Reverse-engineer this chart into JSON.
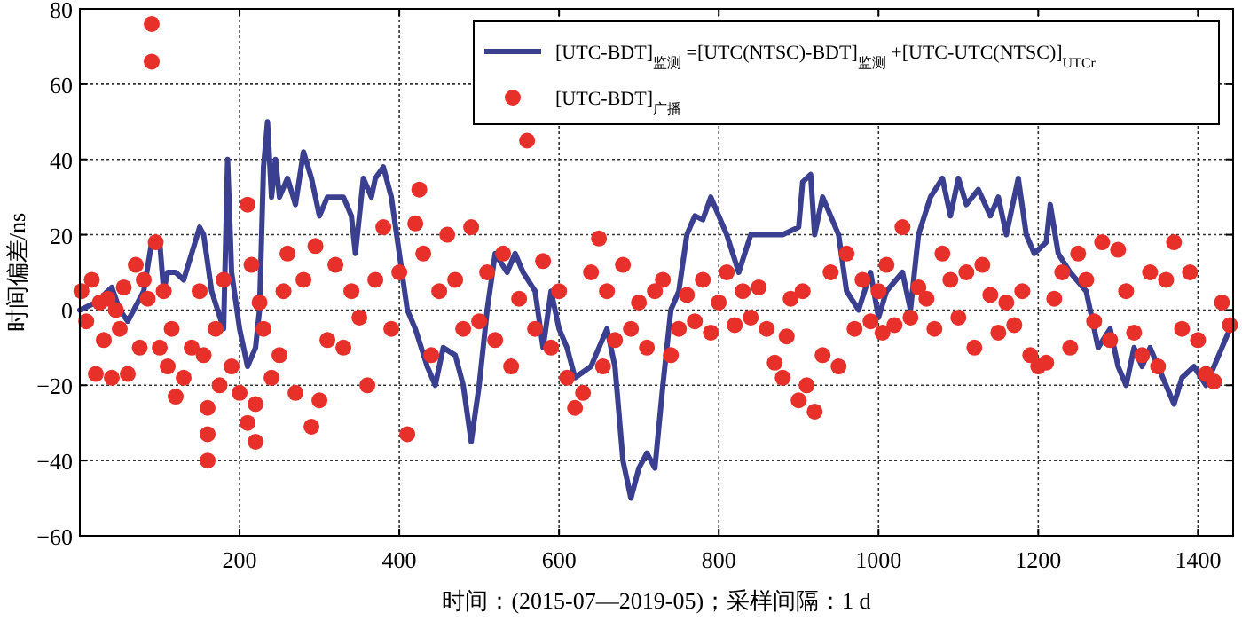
{
  "chart_data": {
    "type": "line",
    "xlabel": "时间：(2015-07—2019-05)；采样间隔：1 d",
    "ylabel": "时间偏差/ns",
    "xlim": [
      0,
      1444
    ],
    "ylim": [
      -60,
      80
    ],
    "xticks": [
      200,
      400,
      600,
      800,
      1000,
      1200,
      1400
    ],
    "yticks": [
      -60,
      -40,
      -20,
      0,
      20,
      40,
      60,
      80
    ],
    "grid": true,
    "legend": "top right",
    "line_style": "solid",
    "series": [
      {
        "name": "[UTC-BDT]$_{监测}$ =[UTC(NTSC)-BDT]$_{监测}$ +[UTC-UTC(NTSC)]$_{UTCr}$",
        "color": "#3b3f8f",
        "marker": "none",
        "x": [
          0,
          20,
          40,
          50,
          60,
          80,
          90,
          100,
          105,
          110,
          120,
          130,
          140,
          150,
          155,
          165,
          180,
          185,
          190,
          200,
          210,
          220,
          225,
          230,
          235,
          240,
          245,
          250,
          260,
          270,
          280,
          290,
          300,
          310,
          320,
          330,
          340,
          345,
          355,
          365,
          370,
          380,
          390,
          400,
          410,
          420,
          435,
          445,
          455,
          470,
          480,
          490,
          500,
          510,
          520,
          535,
          545,
          555,
          570,
          580,
          590,
          600,
          610,
          620,
          640,
          650,
          660,
          670,
          680,
          690,
          700,
          710,
          720,
          730,
          740,
          750,
          760,
          770,
          780,
          790,
          800,
          810,
          825,
          840,
          860,
          880,
          900,
          905,
          915,
          920,
          930,
          940,
          950,
          960,
          975,
          990,
          1000,
          1010,
          1030,
          1040,
          1050,
          1065,
          1080,
          1090,
          1100,
          1110,
          1125,
          1140,
          1150,
          1160,
          1175,
          1185,
          1195,
          1210,
          1215,
          1225,
          1240,
          1260,
          1275,
          1290,
          1300,
          1310,
          1320,
          1330,
          1340,
          1360,
          1370,
          1380,
          1395,
          1410,
          1420,
          1430,
          1440
        ],
        "values": [
          0,
          2,
          6,
          0,
          -3,
          5,
          18,
          18,
          5,
          10,
          10,
          8,
          15,
          22,
          20,
          5,
          -5,
          40,
          10,
          -5,
          -15,
          -10,
          0,
          38,
          50,
          30,
          40,
          30,
          35,
          28,
          42,
          35,
          25,
          30,
          30,
          30,
          25,
          15,
          35,
          30,
          35,
          38,
          30,
          15,
          0,
          -5,
          -15,
          -20,
          -10,
          -12,
          -20,
          -35,
          -20,
          0,
          15,
          10,
          15,
          10,
          5,
          -10,
          5,
          -5,
          -10,
          -18,
          -15,
          -10,
          -5,
          -15,
          -40,
          -50,
          -42,
          -38,
          -42,
          -20,
          0,
          5,
          20,
          25,
          24,
          30,
          25,
          20,
          10,
          20,
          20,
          20,
          22,
          34,
          36,
          20,
          30,
          25,
          20,
          5,
          0,
          10,
          -2,
          5,
          10,
          0,
          20,
          30,
          35,
          25,
          35,
          28,
          32,
          25,
          30,
          20,
          35,
          20,
          15,
          18,
          28,
          15,
          10,
          5,
          -10,
          -5,
          -15,
          -20,
          -10,
          -15,
          -10,
          -20,
          -25,
          -18,
          -15,
          -20,
          -15,
          -10,
          -5
        ]
      },
      {
        "type": "scatter",
        "name": "[UTC-BDT]$_{广播}$",
        "color": "#e8302a",
        "marker": "circle",
        "x": [
          2,
          8,
          15,
          20,
          25,
          30,
          35,
          40,
          45,
          50,
          55,
          60,
          70,
          75,
          80,
          85,
          90,
          90,
          95,
          100,
          105,
          110,
          115,
          120,
          130,
          140,
          150,
          155,
          160,
          160,
          160,
          170,
          175,
          180,
          190,
          200,
          210,
          210,
          215,
          220,
          220,
          225,
          230,
          240,
          250,
          255,
          260,
          270,
          280,
          290,
          295,
          300,
          310,
          320,
          330,
          340,
          350,
          360,
          370,
          380,
          390,
          400,
          410,
          420,
          425,
          430,
          440,
          450,
          460,
          470,
          480,
          490,
          500,
          510,
          520,
          530,
          540,
          550,
          560,
          570,
          580,
          590,
          600,
          610,
          620,
          630,
          640,
          650,
          655,
          660,
          670,
          680,
          690,
          700,
          710,
          720,
          730,
          740,
          750,
          760,
          770,
          780,
          790,
          800,
          810,
          820,
          830,
          840,
          850,
          860,
          870,
          880,
          885,
          890,
          900,
          905,
          910,
          920,
          930,
          940,
          950,
          960,
          970,
          980,
          990,
          1000,
          1005,
          1010,
          1020,
          1030,
          1040,
          1050,
          1060,
          1070,
          1080,
          1090,
          1100,
          1110,
          1120,
          1130,
          1140,
          1150,
          1160,
          1170,
          1180,
          1190,
          1200,
          1210,
          1220,
          1230,
          1240,
          1250,
          1260,
          1270,
          1280,
          1290,
          1300,
          1310,
          1320,
          1330,
          1340,
          1350,
          1360,
          1370,
          1380,
          1390,
          1400,
          1410,
          1420,
          1430,
          1440
        ],
        "values": [
          5,
          -3,
          8,
          -17,
          2,
          -8,
          3,
          -18,
          0,
          -5,
          6,
          -17,
          12,
          -10,
          8,
          3,
          76,
          66,
          18,
          -10,
          5,
          -15,
          -5,
          -23,
          -18,
          -10,
          5,
          -12,
          -40,
          -33,
          -26,
          -5,
          -20,
          8,
          -15,
          -22,
          28,
          -30,
          12,
          -35,
          -25,
          2,
          -5,
          -18,
          -12,
          5,
          15,
          -22,
          8,
          -31,
          17,
          -24,
          -8,
          12,
          -10,
          5,
          -2,
          -20,
          8,
          22,
          -5,
          10,
          -33,
          23,
          32,
          15,
          -12,
          5,
          20,
          8,
          -5,
          22,
          -3,
          10,
          -8,
          15,
          -15,
          3,
          45,
          -5,
          13,
          -10,
          5,
          -18,
          -26,
          -22,
          10,
          19,
          -15,
          5,
          -8,
          12,
          -5,
          2,
          -10,
          5,
          8,
          -12,
          -5,
          4,
          -3,
          8,
          -6,
          2,
          10,
          -4,
          5,
          -2,
          6,
          -5,
          -14,
          -18,
          -7,
          3,
          -24,
          5,
          -20,
          -27,
          -12,
          10,
          -15,
          15,
          -5,
          8,
          -3,
          5,
          -6,
          12,
          -4,
          22,
          -2,
          6,
          3,
          -5,
          15,
          8,
          -2,
          10,
          -10,
          12,
          4,
          -6,
          2,
          -4,
          5,
          -12,
          -15,
          -14,
          3,
          10,
          -10,
          15,
          8,
          -3,
          18,
          -8,
          16,
          5,
          -6,
          -12,
          10,
          -15,
          8,
          18,
          -5,
          10,
          -8,
          -17,
          -19,
          2,
          -4
        ]
      }
    ]
  }
}
